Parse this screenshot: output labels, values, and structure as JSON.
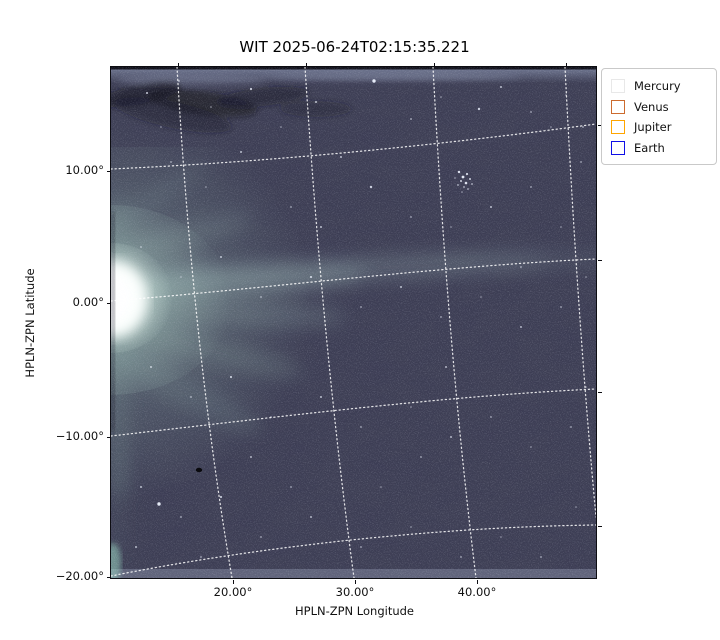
{
  "figure": {
    "title": "WIT 2025-06-24T02:15:35.221",
    "xlabel": "HPLN-ZPN Longitude",
    "ylabel": "HPLN-ZPN Latitude",
    "x_ticks": [
      "20.00°",
      "30.00°",
      "40.00°"
    ],
    "y_ticks": [
      "10.00°",
      "0.00°",
      "−10.00°",
      "−20.00°"
    ]
  },
  "legend": {
    "items": [
      {
        "label": "Mercury",
        "color": "#e8e8e8"
      },
      {
        "label": "Venus",
        "color": "#cc6b2e"
      },
      {
        "label": "Jupiter",
        "color": "#ffa500"
      },
      {
        "label": "Earth",
        "color": "#1010e6"
      }
    ]
  },
  "chart_data": {
    "type": "heatmap",
    "title": "WIT 2025-06-24T02:15:35.221",
    "xlabel": "HPLN-ZPN Longitude",
    "ylabel": "HPLN-ZPN Latitude",
    "x_tick_values_deg": [
      20,
      30,
      40
    ],
    "y_tick_values_deg": [
      10,
      0,
      -10,
      -20
    ],
    "xlim_deg_approx": [
      12,
      50
    ],
    "ylim_deg_approx": [
      -20.5,
      19.5
    ],
    "grid": "white dotted curvilinear WCS grid (ZPN projection), latitude lines tilt upward toward higher longitude",
    "legend_position": "outside upper right",
    "legend_entries": [
      "Mercury",
      "Venus",
      "Jupiter",
      "Earth"
    ],
    "planet_markers_visible_in_frame": false,
    "image_colors": {
      "background_sky": "#3e3f55",
      "glow_core": "#ffffff",
      "glow_halo": "#cfeee2",
      "top_band": "#667089",
      "bottom_band": "#565a6e"
    },
    "image_description": "Dark slate-blue starfield from a heliospheric imager; intense white-mint coronal glow at the left edge centered near 0° latitude with faint streaks fanning toward higher longitudes; turbulent dark smudges in a lighter band along the top edge; small star cluster near 33° longitude, 8° latitude; lighter thin band along the bottom edge; black dead-pixel speck near 17°, −7°."
  },
  "image_features": {
    "dark_spot": [
      88,
      403
    ],
    "stars": [
      [
        348,
        105,
        1.2,
        0.9
      ],
      [
        352,
        110,
        1.4,
        0.95
      ],
      [
        356,
        107,
        1.1,
        0.85
      ],
      [
        350,
        114,
        1.0,
        0.8
      ],
      [
        355,
        116,
        1.3,
        0.9
      ],
      [
        347,
        118,
        0.9,
        0.7
      ],
      [
        359,
        112,
        1.0,
        0.8
      ],
      [
        353,
        120,
        0.9,
        0.7
      ],
      [
        344,
        111,
        0.8,
        0.6
      ],
      [
        357,
        122,
        0.9,
        0.65
      ],
      [
        351,
        125,
        0.8,
        0.6
      ],
      [
        361,
        117,
        0.9,
        0.7
      ],
      [
        36,
        26,
        1.0,
        0.8
      ],
      [
        68,
        14,
        0.9,
        0.7
      ],
      [
        100,
        40,
        0.8,
        0.6
      ],
      [
        140,
        22,
        1.1,
        0.8
      ],
      [
        170,
        60,
        0.8,
        0.6
      ],
      [
        205,
        35,
        1.0,
        0.75
      ],
      [
        263,
        14,
        1.7,
        0.95
      ],
      [
        300,
        52,
        0.9,
        0.65
      ],
      [
        330,
        30,
        0.8,
        0.6
      ],
      [
        390,
        20,
        1.0,
        0.7
      ],
      [
        420,
        45,
        0.9,
        0.6
      ],
      [
        455,
        28,
        0.8,
        0.55
      ],
      [
        472,
        60,
        0.9,
        0.6
      ],
      [
        50,
        60,
        0.8,
        0.6
      ],
      [
        230,
        90,
        1.0,
        0.7
      ],
      [
        60,
        95,
        0.9,
        0.6
      ],
      [
        95,
        120,
        0.8,
        0.55
      ],
      [
        130,
        85,
        1.0,
        0.7
      ],
      [
        180,
        140,
        0.9,
        0.6
      ],
      [
        210,
        160,
        1.0,
        0.7
      ],
      [
        260,
        120,
        1.2,
        0.8
      ],
      [
        300,
        150,
        0.9,
        0.6
      ],
      [
        340,
        160,
        0.8,
        0.55
      ],
      [
        380,
        140,
        1.0,
        0.7
      ],
      [
        420,
        120,
        0.9,
        0.6
      ],
      [
        450,
        160,
        0.8,
        0.55
      ],
      [
        470,
        95,
        0.9,
        0.6
      ],
      [
        368,
        42,
        1.2,
        0.8
      ],
      [
        440,
        60,
        0.8,
        0.55
      ],
      [
        30,
        180,
        0.9,
        0.6
      ],
      [
        70,
        210,
        0.8,
        0.55
      ],
      [
        110,
        190,
        1.0,
        0.7
      ],
      [
        150,
        230,
        0.9,
        0.6
      ],
      [
        200,
        210,
        1.1,
        0.75
      ],
      [
        250,
        240,
        0.9,
        0.6
      ],
      [
        290,
        220,
        1.0,
        0.7
      ],
      [
        330,
        250,
        0.9,
        0.6
      ],
      [
        370,
        230,
        0.8,
        0.55
      ],
      [
        410,
        260,
        1.0,
        0.65
      ],
      [
        450,
        240,
        0.9,
        0.6
      ],
      [
        475,
        210,
        0.8,
        0.55
      ],
      [
        410,
        200,
        0.9,
        0.6
      ],
      [
        40,
        300,
        1.0,
        0.7
      ],
      [
        80,
        330,
        0.9,
        0.65
      ],
      [
        120,
        310,
        1.1,
        0.75
      ],
      [
        160,
        350,
        0.9,
        0.6
      ],
      [
        210,
        330,
        1.0,
        0.7
      ],
      [
        250,
        360,
        0.9,
        0.6
      ],
      [
        300,
        340,
        0.8,
        0.55
      ],
      [
        340,
        370,
        1.0,
        0.65
      ],
      [
        380,
        350,
        0.9,
        0.6
      ],
      [
        420,
        380,
        0.8,
        0.55
      ],
      [
        460,
        360,
        0.9,
        0.6
      ],
      [
        335,
        300,
        1.0,
        0.65
      ],
      [
        475,
        320,
        0.8,
        0.55
      ],
      [
        30,
        420,
        1.0,
        0.7
      ],
      [
        70,
        450,
        0.9,
        0.65
      ],
      [
        110,
        430,
        1.1,
        0.75
      ],
      [
        150,
        470,
        0.9,
        0.6
      ],
      [
        200,
        450,
        1.0,
        0.65
      ],
      [
        250,
        480,
        0.9,
        0.6
      ],
      [
        300,
        460,
        0.8,
        0.55
      ],
      [
        350,
        490,
        0.9,
        0.6
      ],
      [
        390,
        470,
        0.8,
        0.55
      ],
      [
        430,
        490,
        0.9,
        0.6
      ],
      [
        465,
        440,
        0.8,
        0.55
      ],
      [
        48,
        437,
        1.7,
        0.95
      ],
      [
        25,
        480,
        1.0,
        0.7
      ],
      [
        90,
        490,
        0.9,
        0.6
      ],
      [
        180,
        420,
        0.9,
        0.6
      ],
      [
        270,
        420,
        0.8,
        0.55
      ],
      [
        140,
        390,
        1.0,
        0.65
      ],
      [
        310,
        390,
        0.9,
        0.6
      ]
    ]
  }
}
